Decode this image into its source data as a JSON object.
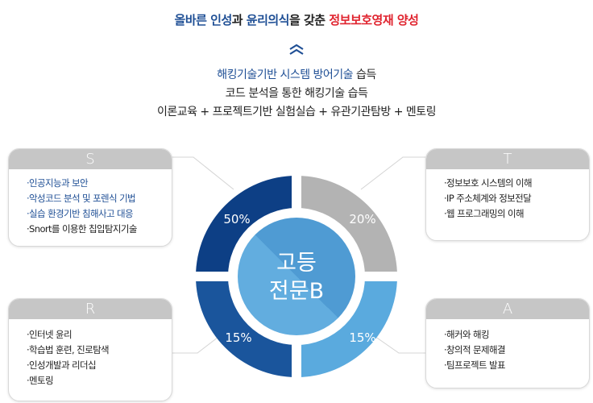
{
  "header": {
    "goal_parts": [
      {
        "text": "올바른 인성",
        "style": "blue"
      },
      {
        "text": "과 ",
        "style": "dark"
      },
      {
        "text": "윤리의식",
        "style": "blue"
      },
      {
        "text": "을 갖춘 ",
        "style": "dark"
      },
      {
        "text": "정보보호영재 양성",
        "style": "red"
      }
    ],
    "arrow_icon": "double-chevron-up",
    "line1_highlight": "해킹기술기반 시스템 방어기술",
    "line1_rest": " 습득",
    "line2": "코드 분석을 통한 해킹기술 습득",
    "line3": "이론교육 + 프로젝트기반 실험실습 + 유관기관탐방 + 멘토링"
  },
  "center": {
    "line1": "고등",
    "line2": "전문B"
  },
  "quadrants": [
    {
      "key": "S",
      "percent": "50%",
      "value": 50,
      "color": "#0d3f85"
    },
    {
      "key": "T",
      "percent": "20%",
      "value": 20,
      "color": "#b3b3b3"
    },
    {
      "key": "R",
      "percent": "15%",
      "value": 15,
      "color": "#1a559c"
    },
    {
      "key": "A",
      "percent": "15%",
      "value": 15,
      "color": "#5aaade"
    }
  ],
  "boxes": {
    "S": {
      "title": "S",
      "items": [
        "·인공지능과 보안",
        "·악성코드 분석 및 포렌식 기법",
        "·실습 환경기반 침해사고 대응",
        "·Snort를 이용한 칩입탐지기술"
      ]
    },
    "T": {
      "title": "T",
      "items": [
        "·정보보호 시스템의 이해",
        "·IP 주소체계와 정보전달",
        "·웹 프로그래밍의 이해"
      ]
    },
    "R": {
      "title": "R",
      "items": [
        "·인터넷 윤리",
        "·학습법 훈련, 진로탐색",
        "·인성개발과 리더십",
        "·멘토링"
      ]
    },
    "A": {
      "title": "A",
      "items": [
        "·해커와 해킹",
        "·창의적 문제해결",
        "·팀프로젝트 발표"
      ]
    }
  },
  "colors": {
    "blue_text": "#1f4f95",
    "red_text": "#e0242f",
    "center_fill": "#58a5da"
  }
}
